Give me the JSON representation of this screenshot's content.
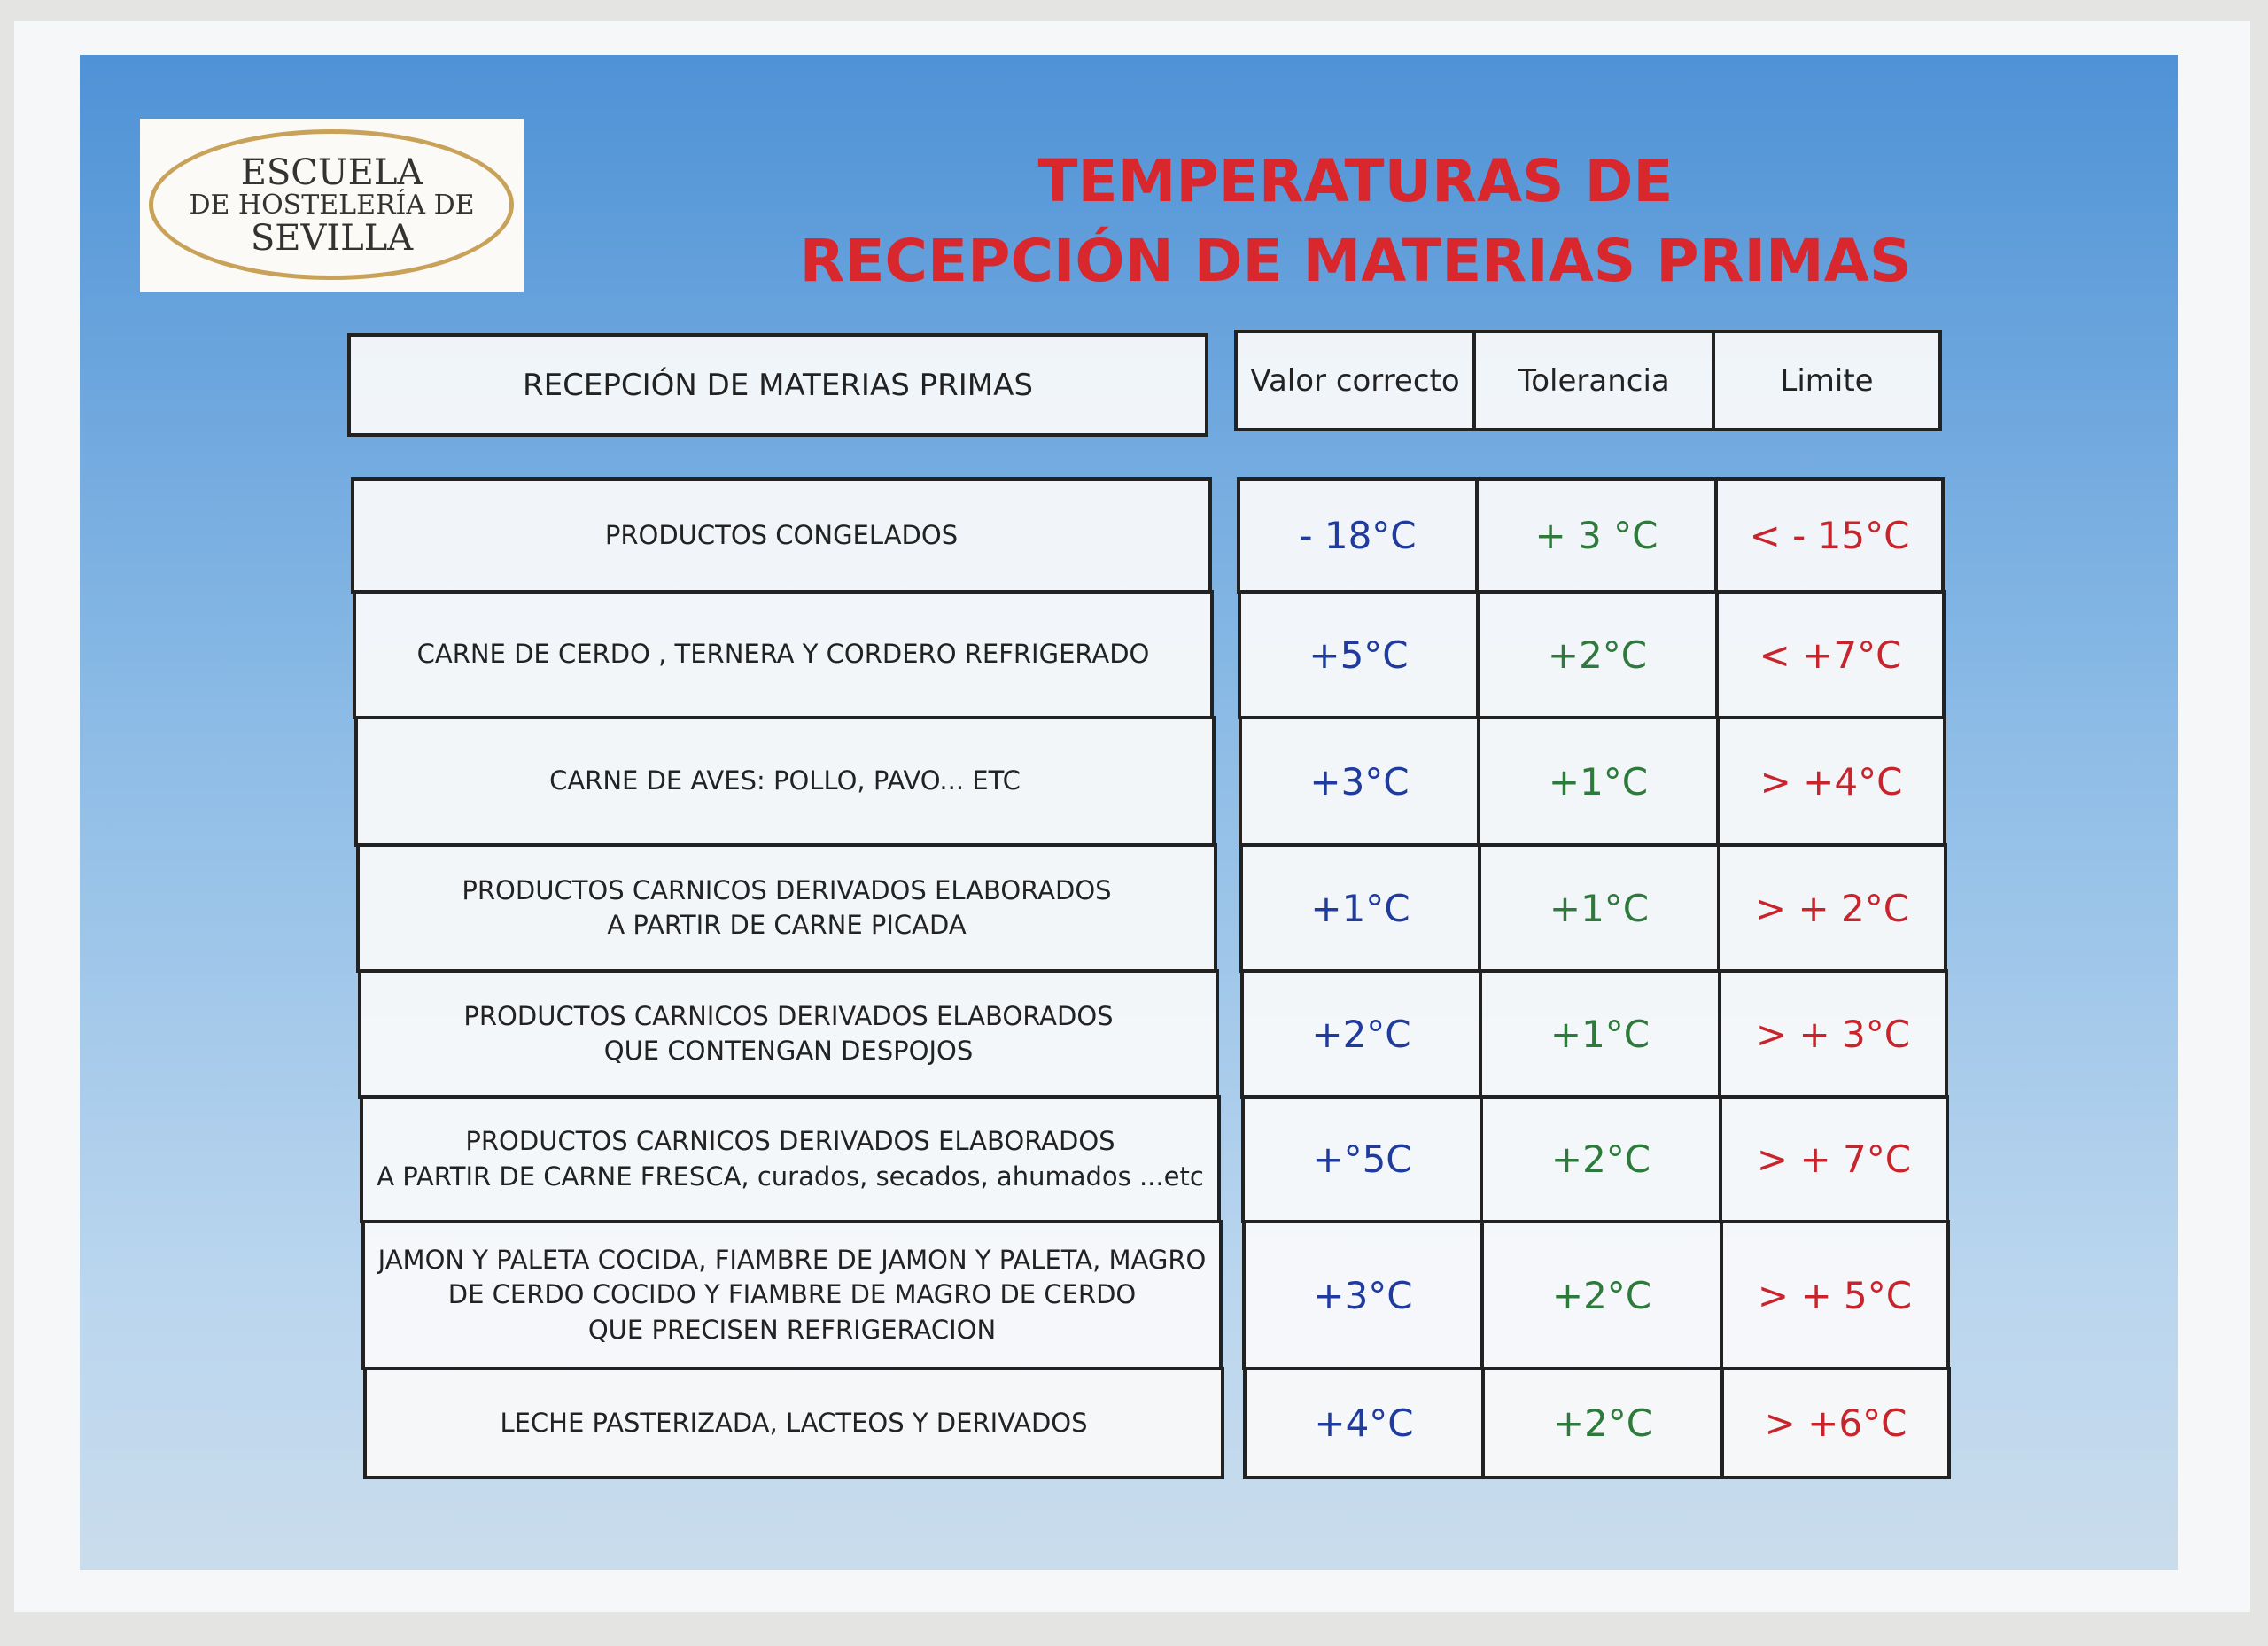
{
  "logo": {
    "lines": [
      "ESCUELA",
      "DE HOSTELERÍA DE",
      "SEVILLA"
    ]
  },
  "header": {
    "title_lines": [
      "TEMPERATURAS DE",
      "RECEPCIÓN DE MATERIAS PRIMAS"
    ]
  },
  "table": {
    "columns": [
      "RECEPCIÓN DE MATERIAS PRIMAS",
      "Valor correcto",
      "Tolerancia",
      "Limite"
    ],
    "rows": [
      {
        "product": [
          "PRODUCTOS CONGELADOS"
        ],
        "value": "- 18°C",
        "tolerance": "+ 3 °C",
        "limit": "< - 15°C"
      },
      {
        "product": [
          "CARNE DE CERDO , TERNERA Y CORDERO REFRIGERADO"
        ],
        "value": "+5°C",
        "tolerance": "+2°C",
        "limit": "< +7°C"
      },
      {
        "product": [
          "CARNE DE AVES: POLLO, PAVO... ETC"
        ],
        "value": "+3°C",
        "tolerance": "+1°C",
        "limit": "> +4°C"
      },
      {
        "product": [
          "PRODUCTOS CARNICOS DERIVADOS  ELABORADOS",
          "A PARTIR DE CARNE PICADA"
        ],
        "value": "+1°C",
        "tolerance": "+1°C",
        "limit": "> + 2°C"
      },
      {
        "product": [
          "PRODUCTOS CARNICOS DERIVADOS  ELABORADOS",
          "QUE CONTENGAN DESPOJOS"
        ],
        "value": "+2°C",
        "tolerance": "+1°C",
        "limit": "> + 3°C"
      },
      {
        "product": [
          "PRODUCTOS CARNICOS DERIVADOS  ELABORADOS",
          "A PARTIR DE CARNE FRESCA, curados, secados, ahumados ...etc"
        ],
        "value": "+°5C",
        "tolerance": "+2°C",
        "limit": "> + 7°C"
      },
      {
        "product": [
          "JAMON Y PALETA COCIDA, FIAMBRE DE JAMON Y PALETA, MAGRO",
          "DE CERDO COCIDO Y FIAMBRE DE MAGRO DE CERDO",
          "QUE PRECISEN REFRIGERACION"
        ],
        "value": "+3°C",
        "tolerance": "+2°C",
        "limit": "> + 5°C"
      },
      {
        "product": [
          "LECHE PASTERIZADA, LACTEOS Y DERIVADOS"
        ],
        "value": "+4°C",
        "tolerance": "+2°C",
        "limit": "> +6°C"
      }
    ]
  }
}
